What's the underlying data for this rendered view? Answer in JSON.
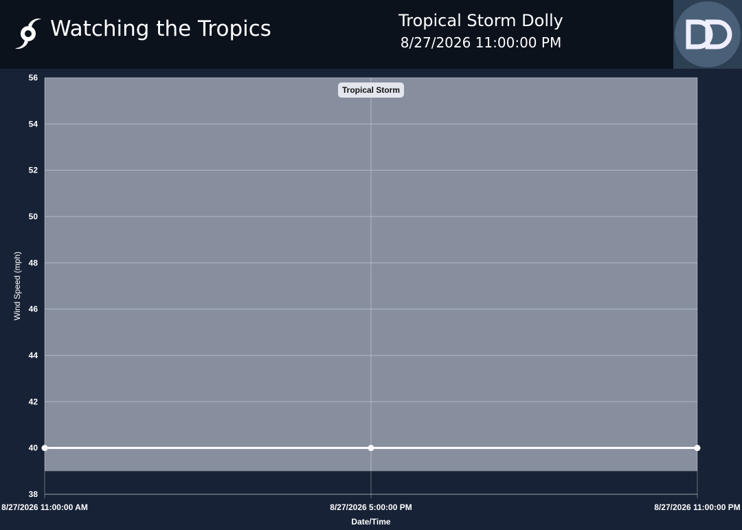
{
  "header": {
    "title": "Watching the Tropics",
    "storm_name": "Tropical Storm Dolly",
    "timestamp": "8/27/2026 11:00:00 PM"
  },
  "chart_data": {
    "type": "line",
    "x_label": "Date/Time",
    "y_label": "Wind Speed (mph)",
    "categories": [
      "8/27/2026 11:00:00 AM",
      "8/27/2026 5:00:00 PM",
      "8/27/2026 11:00:00 PM"
    ],
    "values": [
      40,
      40,
      40
    ],
    "color": "#ffffff",
    "ylim": [
      38,
      56
    ],
    "yticks": [
      38,
      40,
      42,
      44,
      46,
      48,
      50,
      52,
      54,
      56
    ],
    "grid": true,
    "bands": [
      {
        "label": "Tropical Storm",
        "from": 39,
        "to": 56,
        "color": "#878f9f"
      }
    ]
  }
}
